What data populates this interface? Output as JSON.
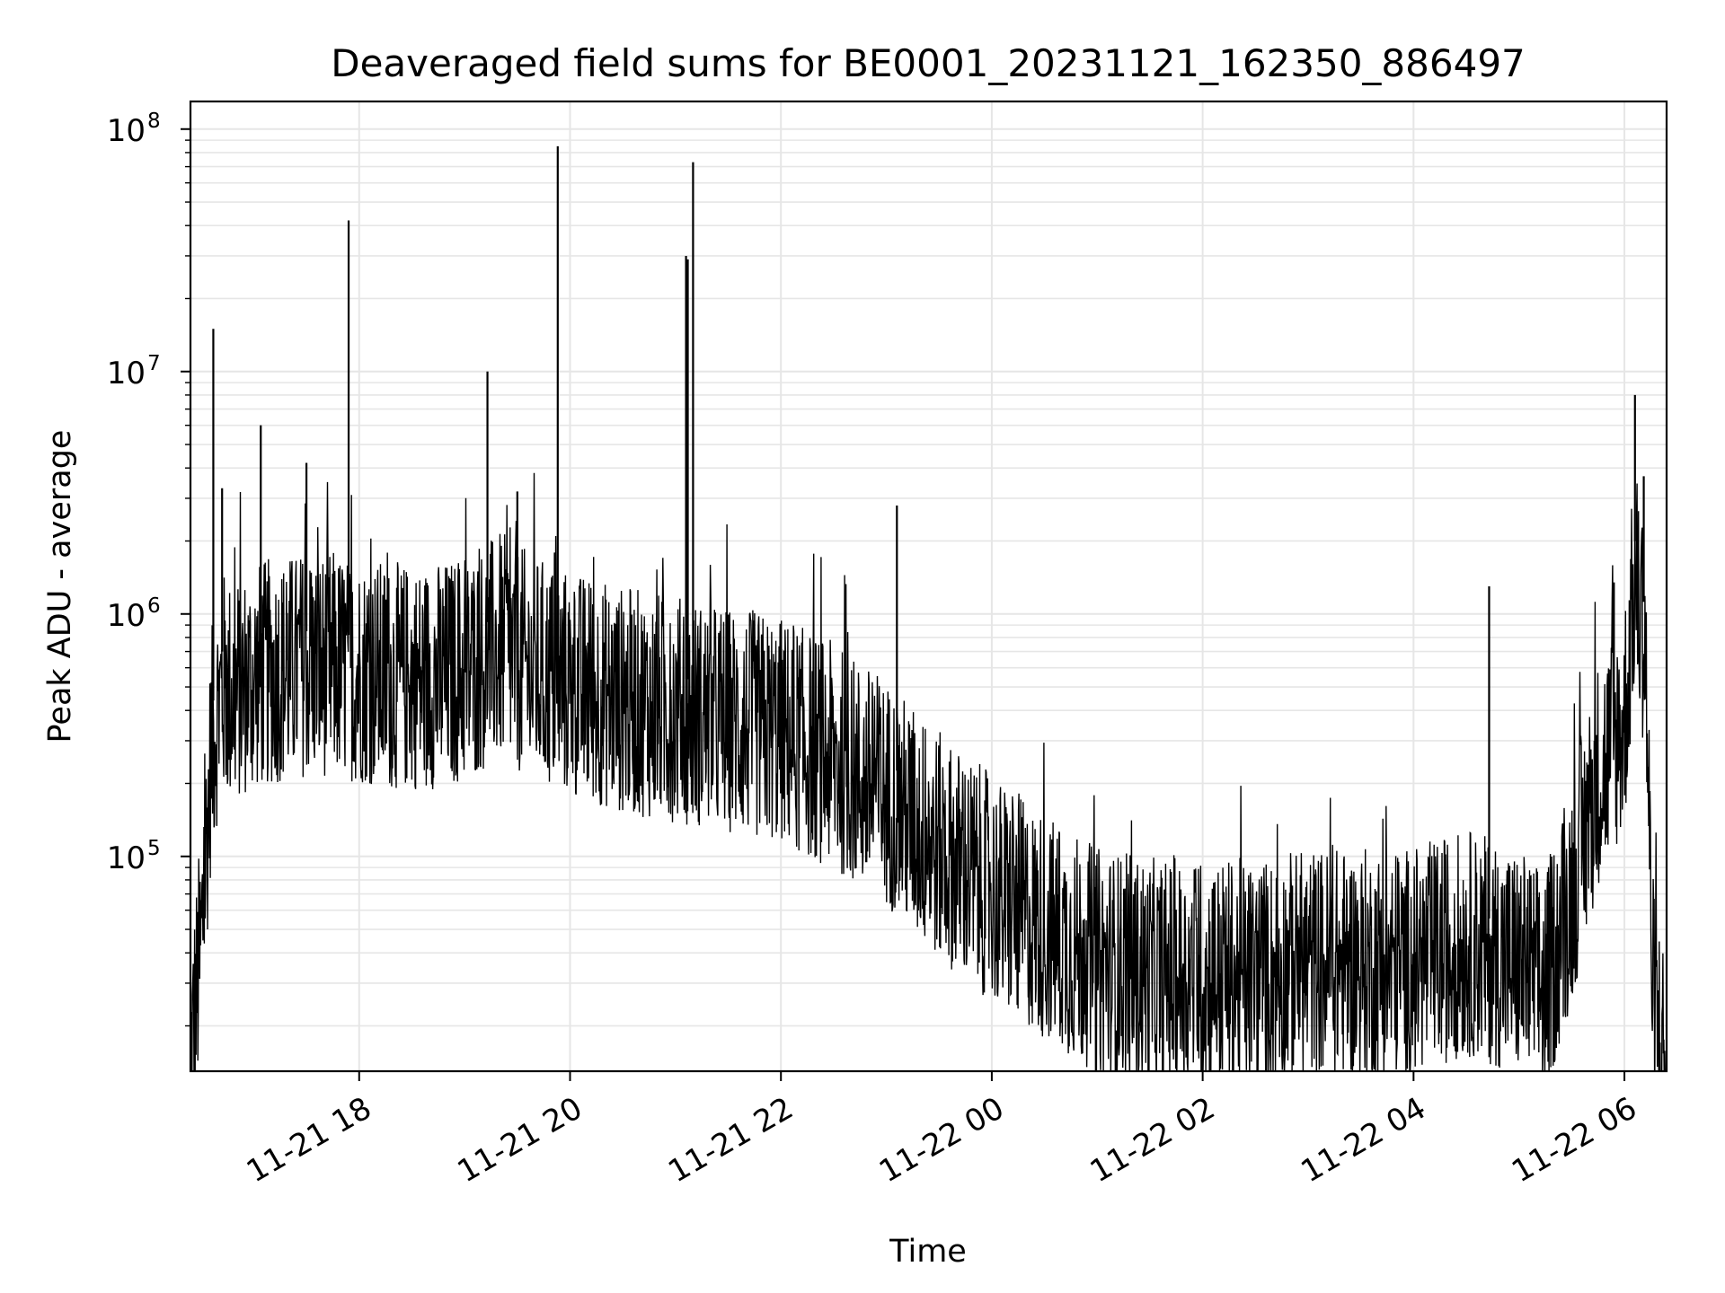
{
  "chart_data": {
    "type": "line",
    "title": "Deaveraged field sums for BE0001_20231121_162350_886497",
    "xlabel": "Time",
    "ylabel": "Peak ADU - average",
    "yscale": "log",
    "ylim": [
      13000,
      130000000
    ],
    "xlim": [
      "2023-11-21 16:24",
      "2023-11-22 06:24"
    ],
    "grid": true,
    "x_ticks": [
      "11-21 18",
      "11-21 20",
      "11-21 22",
      "11-22 00",
      "11-22 02",
      "11-22 04",
      "11-22 06"
    ],
    "y_ticks": [
      {
        "base": "10",
        "exp": "5"
      },
      {
        "base": "10",
        "exp": "6"
      },
      {
        "base": "10",
        "exp": "7"
      },
      {
        "base": "10",
        "exp": "8"
      }
    ],
    "line_color": "#000000",
    "series": [
      {
        "points": [
          [
            "2023-11-21 16:24",
            20000
          ],
          [
            "2023-11-21 16:30",
            60000
          ],
          [
            "2023-11-21 16:36",
            400000
          ],
          [
            "2023-11-21 16:42",
            700000
          ],
          [
            "2023-11-21 16:48",
            650000
          ],
          [
            "2023-11-21 17:00",
            750000
          ],
          [
            "2023-11-21 17:15",
            800000
          ],
          [
            "2023-11-21 17:30",
            850000
          ],
          [
            "2023-11-21 17:45",
            850000
          ],
          [
            "2023-11-21 18:00",
            800000
          ],
          [
            "2023-11-21 18:20",
            750000
          ],
          [
            "2023-11-21 18:40",
            750000
          ],
          [
            "2023-11-21 19:00",
            800000
          ],
          [
            "2023-11-21 19:20",
            1000000
          ],
          [
            "2023-11-21 19:40",
            800000
          ],
          [
            "2023-11-21 20:00",
            700000
          ],
          [
            "2023-11-21 20:30",
            600000
          ],
          [
            "2023-11-21 21:00",
            550000
          ],
          [
            "2023-11-21 21:30",
            500000
          ],
          [
            "2023-11-21 22:00",
            450000
          ],
          [
            "2023-11-21 22:30",
            350000
          ],
          [
            "2023-11-21 23:00",
            250000
          ],
          [
            "2023-11-21 23:30",
            150000
          ],
          [
            "2023-11-22 00:00",
            100000
          ],
          [
            "2023-11-22 00:30",
            70000
          ],
          [
            "2023-11-22 01:00",
            50000
          ],
          [
            "2023-11-22 01:30",
            45000
          ],
          [
            "2023-11-22 02:00",
            45000
          ],
          [
            "2023-11-22 02:30",
            45000
          ],
          [
            "2023-11-22 03:00",
            50000
          ],
          [
            "2023-11-22 03:30",
            50000
          ],
          [
            "2023-11-22 04:00",
            50000
          ],
          [
            "2023-11-22 04:30",
            60000
          ],
          [
            "2023-11-22 05:00",
            50000
          ],
          [
            "2023-11-22 05:15",
            40000
          ],
          [
            "2023-11-22 05:30",
            100000
          ],
          [
            "2023-11-22 05:45",
            300000
          ],
          [
            "2023-11-22 06:00",
            500000
          ],
          [
            "2023-11-22 06:06",
            2000000
          ],
          [
            "2023-11-22 06:12",
            1000000
          ],
          [
            "2023-11-22 06:16",
            40000
          ],
          [
            "2023-11-22 06:24",
            18000
          ]
        ],
        "noise_band": [
          0.25,
          2.2
        ],
        "spikes": [
          [
            "2023-11-21 16:37",
            15000000
          ],
          [
            "2023-11-21 16:42",
            3300000
          ],
          [
            "2023-11-21 17:04",
            6000000
          ],
          [
            "2023-11-21 17:30",
            4200000
          ],
          [
            "2023-11-21 17:54",
            42000000
          ],
          [
            "2023-11-21 19:13",
            10000000
          ],
          [
            "2023-11-21 19:30",
            3200000
          ],
          [
            "2023-11-21 19:53",
            85000000
          ],
          [
            "2023-11-21 21:06",
            30000000
          ],
          [
            "2023-11-21 21:07",
            29000000
          ],
          [
            "2023-11-21 21:10",
            73000000
          ],
          [
            "2023-11-21 23:06",
            2800000
          ],
          [
            "2023-11-22 04:43",
            1300000
          ],
          [
            "2023-11-22 05:54",
            1350000
          ],
          [
            "2023-11-22 06:06",
            8000000
          ],
          [
            "2023-11-22 06:11",
            3700000
          ]
        ]
      }
    ]
  }
}
